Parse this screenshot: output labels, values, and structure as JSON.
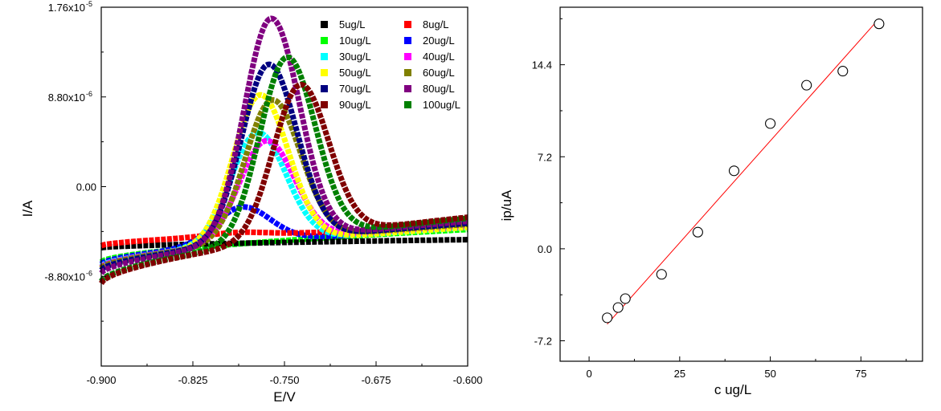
{
  "chart_data": [
    {
      "type": "line",
      "xlabel": "E/V",
      "ylabel": "I/A",
      "xlim": [
        -0.9,
        -0.6
      ],
      "ylim": [
        -1.76e-05,
        1.76e-05
      ],
      "x_ticks": [
        "-0.900",
        "-0.825",
        "-0.750",
        "-0.675",
        "-0.600"
      ],
      "y_ticks": [
        "1.76x10",
        "8.80x10",
        "0.00",
        "-8.80x10"
      ],
      "y_tick_exponents": [
        "-5",
        "-6",
        "",
        "-6"
      ],
      "legend_position": "top-right",
      "series": [
        {
          "name": "5ug/L",
          "color": "#000000",
          "peak_x": null,
          "peak_y": null,
          "base_left": -6e-06,
          "base_right": -5.2e-06
        },
        {
          "name": "8ug/L",
          "color": "#ff0000",
          "peak_x": -0.79,
          "peak_y": -4.5e-06,
          "base_left": -5.8e-06,
          "base_right": -4e-06
        },
        {
          "name": "10ug/L",
          "color": "#00ff00",
          "peak_x": null,
          "peak_y": null,
          "base_left": -7.4e-06,
          "base_right": -4.2e-06
        },
        {
          "name": "20ug/L",
          "color": "#0000ff",
          "peak_x": -0.785,
          "peak_y": -2e-06,
          "base_left": -7.6e-06,
          "base_right": -4e-06
        },
        {
          "name": "30ug/L",
          "color": "#00ffff",
          "peak_x": -0.772,
          "peak_y": 5.3e-06,
          "base_left": -7.8e-06,
          "base_right": -4e-06
        },
        {
          "name": "40ug/L",
          "color": "#ff00ff",
          "peak_x": -0.765,
          "peak_y": 4.5e-06,
          "base_left": -7.9e-06,
          "base_right": -3.8e-06
        },
        {
          "name": "50ug/L",
          "color": "#ffff00",
          "peak_x": -0.77,
          "peak_y": 9e-06,
          "base_left": -8e-06,
          "base_right": -4e-06
        },
        {
          "name": "60ug/L",
          "color": "#808000",
          "peak_x": -0.76,
          "peak_y": 8.5e-06,
          "base_left": -8e-06,
          "base_right": -3.7e-06
        },
        {
          "name": "70ug/L",
          "color": "#000080",
          "peak_x": -0.763,
          "peak_y": 1.2e-05,
          "base_left": -8.2e-06,
          "base_right": -3.6e-06
        },
        {
          "name": "80ug/L",
          "color": "#800080",
          "peak_x": -0.761,
          "peak_y": 1.65e-05,
          "base_left": -8.5e-06,
          "base_right": -3.4e-06
        },
        {
          "name": "90ug/L",
          "color": "#800000",
          "peak_x": -0.737,
          "peak_y": 1e-05,
          "base_left": -9.5e-06,
          "base_right": -3e-06
        },
        {
          "name": "100ug/L",
          "color": "#008000",
          "peak_x": -0.748,
          "peak_y": 1.27e-05,
          "base_left": -9.3e-06,
          "base_right": -3.1e-06
        }
      ]
    },
    {
      "type": "scatter",
      "xlabel": "c ug/L",
      "ylabel": "ip/uA",
      "xlim": [
        -8,
        92
      ],
      "ylim": [
        -8.8,
        18.9
      ],
      "x_ticks": [
        "0",
        "25",
        "50",
        "75"
      ],
      "y_ticks": [
        "-7.2",
        "0.0",
        "7.2",
        "14.4"
      ],
      "points": [
        {
          "x": 5,
          "y": -5.4
        },
        {
          "x": 8,
          "y": -4.6
        },
        {
          "x": 10,
          "y": -3.9
        },
        {
          "x": 20,
          "y": -2.0
        },
        {
          "x": 30,
          "y": 1.3
        },
        {
          "x": 40,
          "y": 6.1
        },
        {
          "x": 50,
          "y": 9.8
        },
        {
          "x": 60,
          "y": 12.8
        },
        {
          "x": 70,
          "y": 13.9
        },
        {
          "x": 80,
          "y": 17.6
        }
      ],
      "fit_line": {
        "x": [
          5,
          80
        ],
        "y": [
          -5.9,
          18.0
        ],
        "color": "#ff0000"
      }
    }
  ]
}
